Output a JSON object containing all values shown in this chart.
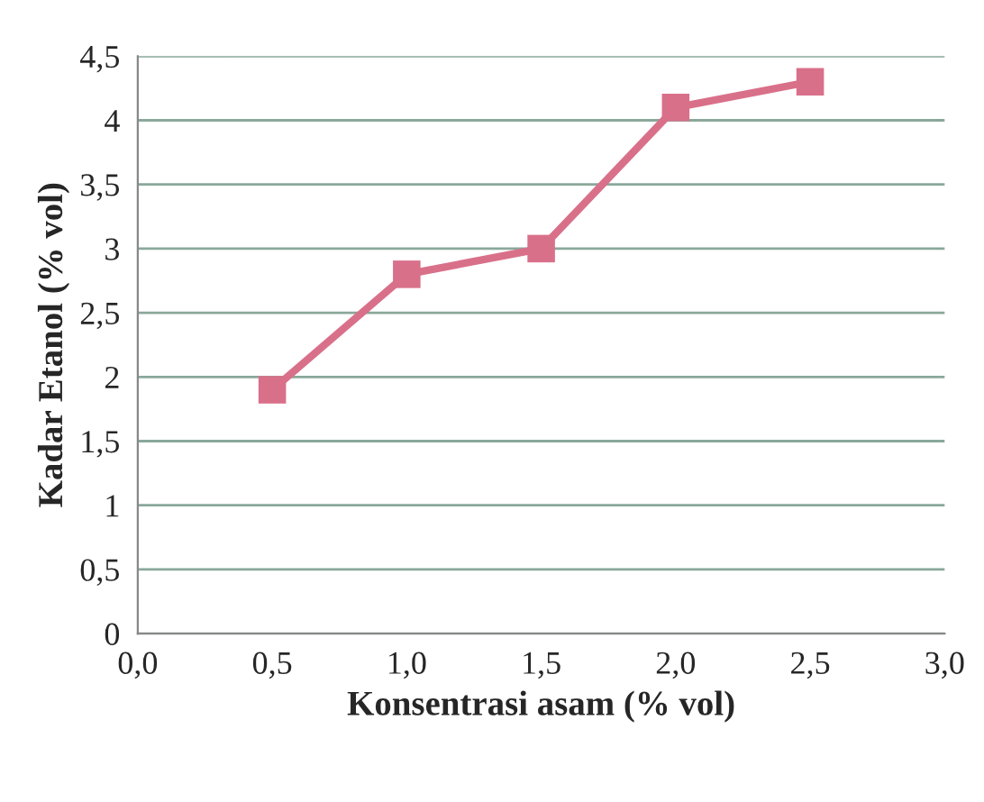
{
  "chart_data": {
    "type": "line",
    "xlabel": "Konsentrasi asam (% vol)",
    "ylabel": "Kadar Etanol (% vol)",
    "x": [
      0.5,
      1.0,
      1.5,
      2.0,
      2.5
    ],
    "series": [
      {
        "color": "#d9708a",
        "values": [
          1.9,
          2.8,
          3.0,
          4.1,
          4.3
        ]
      }
    ],
    "xlim": [
      0,
      3
    ],
    "ylim": [
      0,
      4.5
    ],
    "xticks": [
      {
        "value": 0,
        "label": "0,0"
      },
      {
        "value": 0.5,
        "label": "0,5"
      },
      {
        "value": 1,
        "label": "1,0"
      },
      {
        "value": 1.5,
        "label": "1,5"
      },
      {
        "value": 2,
        "label": "2,0"
      },
      {
        "value": 2.5,
        "label": "2,5"
      },
      {
        "value": 3,
        "label": "3,0"
      }
    ],
    "yticks": [
      0,
      {
        "value": 0.5,
        "label": "0,5"
      },
      1,
      {
        "value": 1.5,
        "label": "1,5"
      },
      2,
      {
        "value": 2.5,
        "label": "2,5"
      },
      3,
      {
        "value": 3.5,
        "label": "3,5"
      },
      4,
      {
        "value": 4.5,
        "label": "4,5"
      }
    ],
    "grid": "y",
    "marker": "square",
    "line_style": "solid"
  }
}
